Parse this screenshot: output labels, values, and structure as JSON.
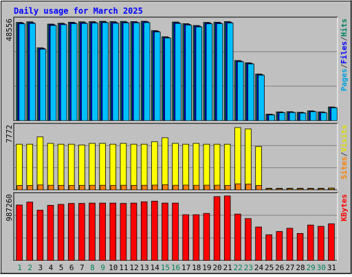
{
  "chart_data": {
    "type": "bar",
    "title": "Daily usage for March 2025",
    "days": [
      "1",
      "2",
      "3",
      "4",
      "5",
      "6",
      "7",
      "8",
      "9",
      "10",
      "11",
      "12",
      "13",
      "14",
      "15",
      "16",
      "17",
      "18",
      "19",
      "20",
      "21",
      "22",
      "23",
      "24",
      "25",
      "26",
      "27",
      "28",
      "29",
      "30",
      "31"
    ],
    "weekend_days": [
      1,
      2,
      8,
      9,
      15,
      16,
      22,
      23,
      29,
      30
    ],
    "panels": [
      {
        "id": "top",
        "ymax_label": "48556",
        "ymax": 48556,
        "right_labels": [
          "Pages",
          "/",
          "Files",
          "/",
          "Hits"
        ],
        "right_colors": [
          "#00a0e0",
          "#404040",
          "#0000ff",
          "#404040",
          "#008060"
        ],
        "series": [
          {
            "name": "Hits",
            "color": "#00805c",
            "values": [
              48000,
              48300,
              35600,
              47200,
              47600,
              48100,
              48300,
              48400,
              48556,
              48400,
              48500,
              48400,
              48556,
              44000,
              41000,
              48200,
              47400,
              46500,
              48000,
              48100,
              48400,
              29400,
              28300,
              22800,
              3200,
              4300,
              4400,
              4100,
              4800,
              4300,
              6700
            ]
          },
          {
            "name": "Files",
            "color": "#0000ff",
            "values": [
              47700,
              47900,
              35300,
              46900,
              47300,
              47800,
              47900,
              48000,
              48200,
              48000,
              48100,
              48100,
              48300,
              43700,
              40700,
              47900,
              47100,
              46200,
              47700,
              47800,
              48100,
              29100,
              28000,
              22500,
              3000,
              4100,
              4200,
              3900,
              4600,
              4100,
              6500
            ]
          },
          {
            "name": "Pages",
            "color": "#00c0ff",
            "values": [
              47300,
              47500,
              34900,
              46500,
              46900,
              47400,
              47500,
              47700,
              47900,
              47600,
              47800,
              47800,
              47900,
              43300,
              40400,
              47500,
              46700,
              45800,
              47300,
              47400,
              47700,
              28800,
              27700,
              22200,
              2800,
              3900,
              4000,
              3700,
              4400,
              3900,
              6300
            ]
          }
        ]
      },
      {
        "id": "middle",
        "ymax_label": "7772",
        "ymax": 7772,
        "right_labels": [
          "Sites",
          "/",
          "Visits"
        ],
        "right_colors": [
          "#ff8000",
          "#404040",
          "#e0e000"
        ],
        "series": [
          {
            "name": "Visits",
            "color": "#ffff00",
            "values": [
              5700,
              5700,
              6600,
              5800,
              5700,
              5700,
              5600,
              5800,
              5800,
              5700,
              5800,
              5700,
              5700,
              6000,
              6500,
              5800,
              5700,
              5800,
              5700,
              5700,
              5700,
              7772,
              7600,
              5400,
              200,
              200,
              200,
              200,
              200,
              200,
              250
            ]
          },
          {
            "name": "Sites",
            "color": "#ff8000",
            "values": [
              560,
              560,
              620,
              580,
              570,
              560,
              570,
              580,
              580,
              570,
              580,
              570,
              580,
              600,
              650,
              580,
              600,
              580,
              590,
              590,
              570,
              760,
              740,
              560,
              120,
              120,
              120,
              120,
              120,
              120,
              130
            ]
          }
        ]
      },
      {
        "id": "bottom",
        "ymax_label": "987260",
        "ymax": 987260,
        "right_labels": [
          "KBytes"
        ],
        "right_colors": [
          "#ff0000"
        ],
        "series": [
          {
            "name": "KBytes",
            "color": "#ff0000",
            "values": [
              860000,
              905000,
              780000,
              855000,
              870000,
              885000,
              885000,
              890000,
              890000,
              890000,
              885000,
              890000,
              910000,
              920000,
              890000,
              890000,
              710000,
              710000,
              730000,
              990000,
              1000000,
              720000,
              650000,
              520000,
              400000,
              450000,
              500000,
              420000,
              550000,
              530000,
              570000
            ]
          }
        ]
      }
    ]
  }
}
